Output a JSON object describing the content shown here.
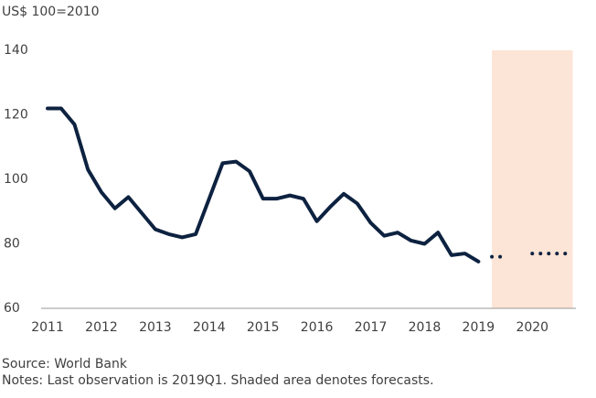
{
  "chart_data": {
    "type": "line",
    "y_unit_label": "US$ 100=2010",
    "source": "Source: World Bank",
    "notes": "Notes: Last observation is 2019Q1. Shaded area denotes forecasts.",
    "series": [
      {
        "color": "#0d2240",
        "style": "solid",
        "x": [
          2011,
          2011.25,
          2011.5,
          2011.75,
          2012,
          2012.25,
          2012.5,
          2012.75,
          2013,
          2013.25,
          2013.5,
          2013.75,
          2014,
          2014.25,
          2014.5,
          2014.75,
          2015,
          2015.25,
          2015.5,
          2015.75,
          2016,
          2016.25,
          2016.5,
          2016.75,
          2017,
          2017.25,
          2017.5,
          2017.75,
          2018,
          2018.25,
          2018.5,
          2018.75,
          2019
        ],
        "values": [
          122,
          122,
          117,
          103,
          96,
          91,
          94.5,
          89.5,
          84.5,
          83,
          82,
          83,
          94,
          105,
          105.5,
          102.5,
          94,
          94,
          95,
          94,
          87,
          91.5,
          95.5,
          92.5,
          86.5,
          82.5,
          83.5,
          81,
          80,
          83.5,
          76.5,
          77,
          74.5
        ]
      },
      {
        "color": "#0d2240",
        "style": "dotted",
        "x": [
          2019.25,
          2019.5,
          2019.75,
          2020,
          2020.25,
          2020.5,
          2020.75
        ],
        "values": [
          76,
          76,
          null,
          77,
          77,
          77,
          77
        ]
      }
    ],
    "shaded_region": {
      "xlim": [
        2019.25,
        2020.75
      ],
      "color": "#fce4d6"
    },
    "xlim": [
      2010.88,
      2020.81
    ],
    "xticks": [
      2011,
      2012,
      2013,
      2014,
      2015,
      2016,
      2017,
      2018,
      2019,
      2020
    ],
    "ylim": [
      60,
      140
    ],
    "yticks": [
      60,
      80,
      100,
      120,
      140
    ],
    "grid": false
  }
}
